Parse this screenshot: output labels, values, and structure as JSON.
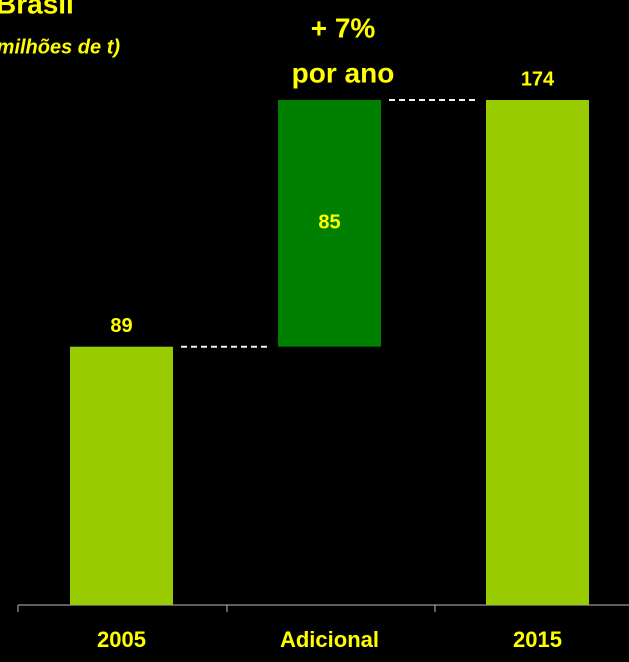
{
  "chart_data": {
    "type": "waterfall",
    "title": "Brasil",
    "subtitle": "(milhões de t)",
    "annotation": [
      "+ 7%",
      "por ano"
    ],
    "categories": [
      "2005",
      "Adicional",
      "2015"
    ],
    "values": [
      89,
      85,
      174
    ],
    "measure": [
      "absolute",
      "relative",
      "total"
    ],
    "bar_colors": [
      "#99cc00",
      "#008000",
      "#99cc00"
    ],
    "label_color": "#ffff00"
  }
}
